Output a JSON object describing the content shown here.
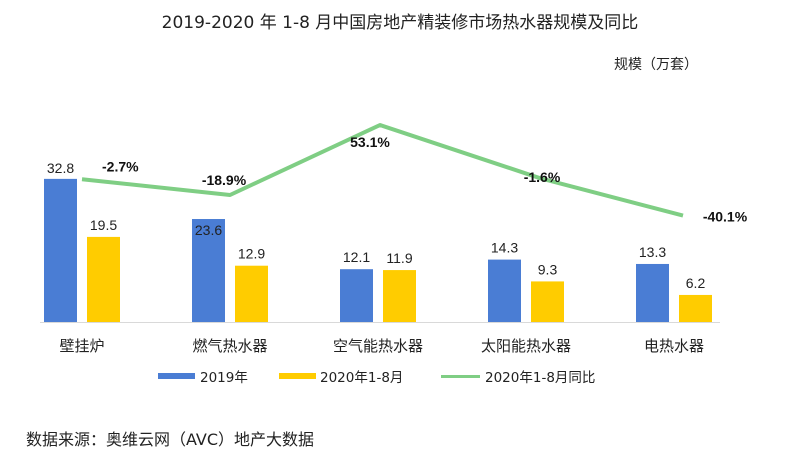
{
  "chart_data": {
    "type": "bar",
    "title": "2019-2020 年 1-8 月中国房地产精装修市场热水器规模及同比",
    "ylabel": "规模（万套）",
    "categories": [
      "壁挂炉",
      "燃气热水器",
      "空气能热水器",
      "太阳能热水器",
      "电热水器"
    ],
    "series": [
      {
        "name": "2019年",
        "type": "bar",
        "axis": "left",
        "color": "#4a7dd4",
        "values": [
          32.8,
          23.6,
          12.1,
          14.3,
          13.3
        ],
        "labels": [
          "32.8",
          "23.6",
          "12.1",
          "14.3",
          "13.3"
        ]
      },
      {
        "name": "2020年1-8月",
        "type": "bar",
        "axis": "left",
        "color": "#ffcc00",
        "values": [
          19.5,
          12.9,
          11.9,
          9.3,
          6.2
        ],
        "labels": [
          "19.5",
          "12.9",
          "11.9",
          "9.3",
          "6.2"
        ]
      },
      {
        "name": "2020年1-8月同比",
        "type": "line",
        "axis": "right",
        "unit": "%",
        "color": "#7fce84",
        "values": [
          -2.7,
          -18.9,
          53.1,
          -1.6,
          -40.1
        ],
        "labels": [
          "-2.7%",
          "-18.9%",
          "53.1%",
          "-1.6%",
          "-40.1%"
        ]
      }
    ],
    "ylim": [
      0,
      33
    ],
    "y2lim": [
      -50,
      60
    ],
    "grid": false,
    "legend": "bottom"
  },
  "source": "数据来源：奥维云网（AVC）地产大数据"
}
